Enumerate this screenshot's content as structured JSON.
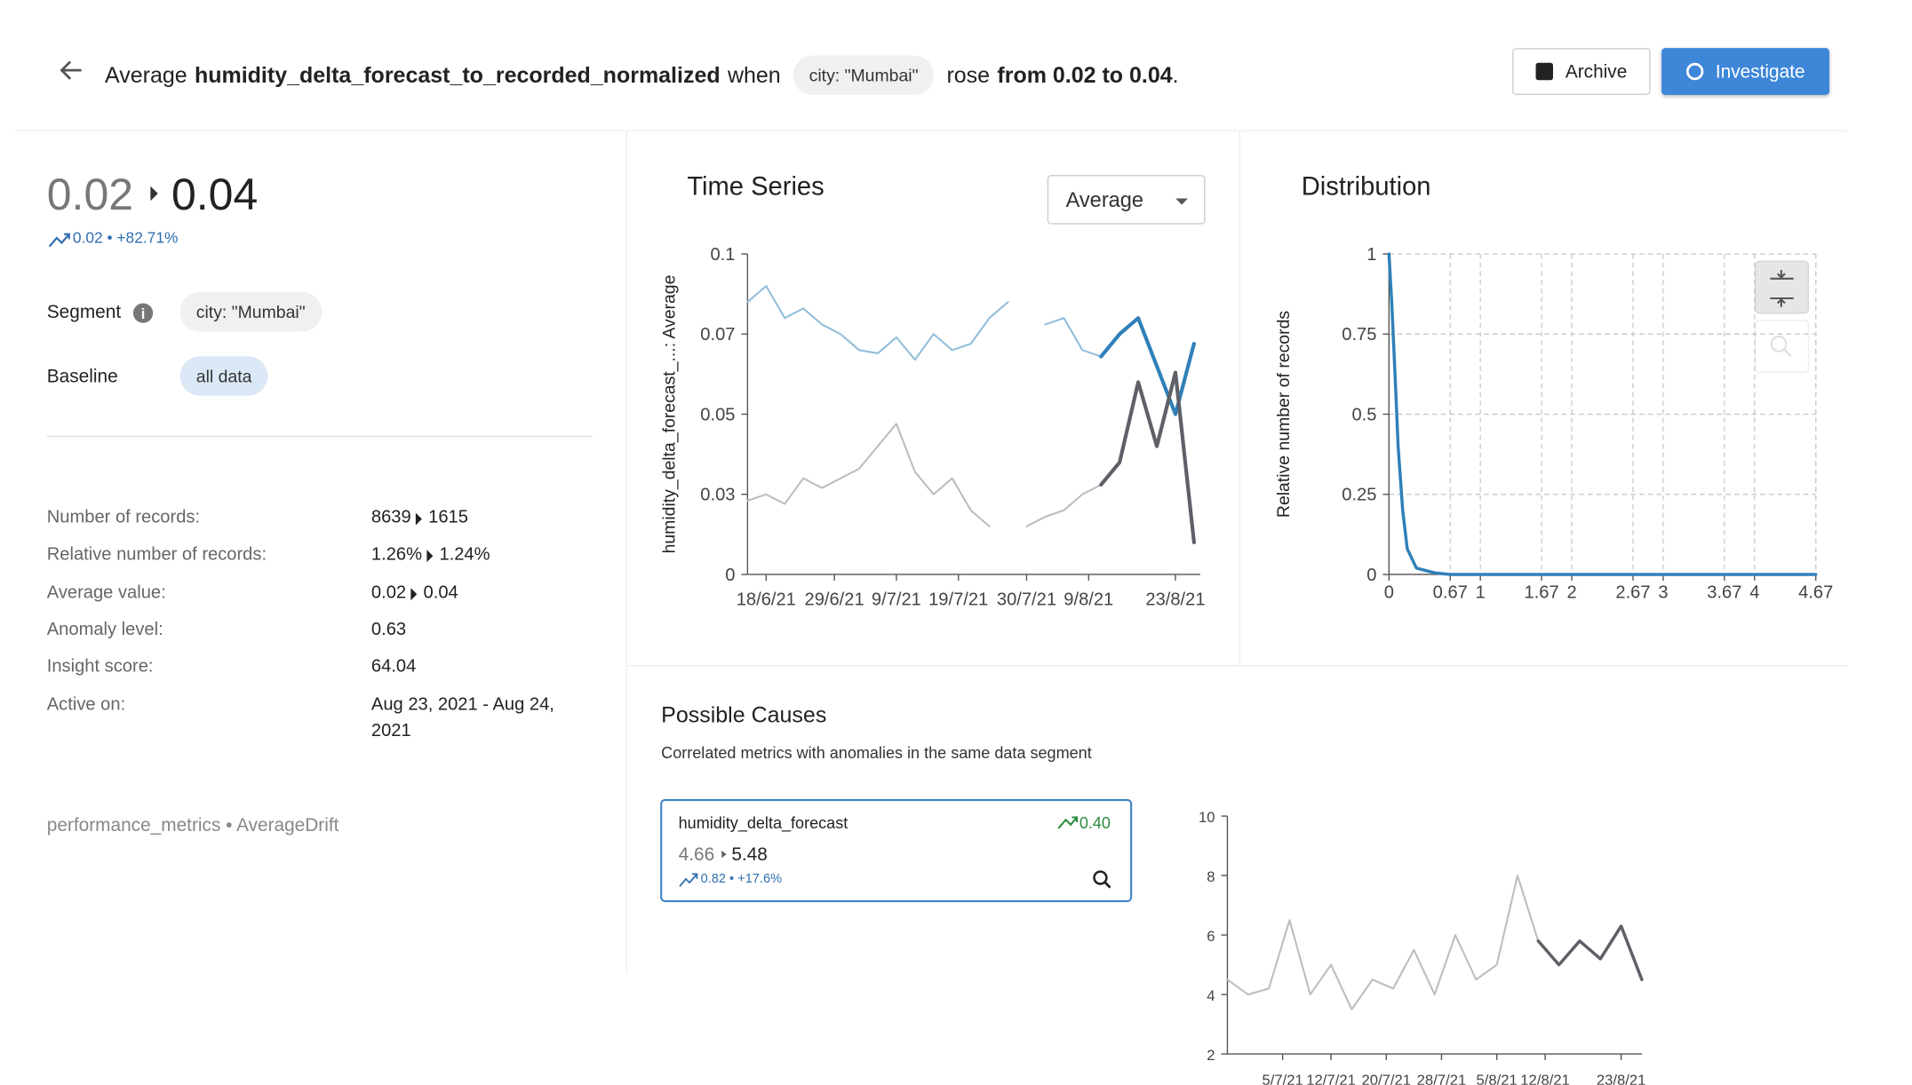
{
  "header": {
    "prefix": "Average",
    "metric": "humidity_delta_forecast_to_recorded_normalized",
    "when": "when",
    "segment_chip": "city: \"Mumbai\"",
    "verb": "rose",
    "change": "from 0.02 to 0.04",
    "end": "."
  },
  "buttons": {
    "archive": "Archive",
    "investigate": "Investigate"
  },
  "summary": {
    "from": "0.02",
    "to": "0.04",
    "delta": "0.02 • +82.71%"
  },
  "segment": {
    "label": "Segment",
    "value": "city: \"Mumbai\""
  },
  "baseline": {
    "label": "Baseline",
    "value": "all data"
  },
  "stats": [
    {
      "label": "Number of records:",
      "from": "8639",
      "to": "1615"
    },
    {
      "label": "Relative number of records:",
      "from": "1.26%",
      "to": "1.24%"
    },
    {
      "label": "Average value:",
      "from": "0.02",
      "to": "0.04"
    },
    {
      "label": "Anomaly level:",
      "value": "0.63"
    },
    {
      "label": "Insight score:",
      "value": "64.04"
    },
    {
      "label": "Active on:",
      "value": "Aug 23, 2021 - Aug 24, 2021"
    }
  ],
  "footer": "performance_metrics • AverageDrift",
  "causes": {
    "title": "Possible Causes",
    "subtitle": "Correlated metrics with anomalies in the same data segment",
    "card": {
      "metric": "humidity_delta_forecast",
      "score": "0.40",
      "from": "4.66",
      "to": "5.48",
      "delta": "0.82 • +17.6%"
    }
  },
  "chart_data": [
    {
      "type": "line",
      "title": "Time Series",
      "control": "Average",
      "ylabel": "humidity_delta_forecast_...: Average",
      "x": [
        "2021-06-15",
        "2021-06-18",
        "2021-06-21",
        "2021-06-24",
        "2021-06-27",
        "2021-06-30",
        "2021-07-03",
        "2021-07-06",
        "2021-07-09",
        "2021-07-12",
        "2021-07-15",
        "2021-07-18",
        "2021-07-21",
        "2021-07-24",
        "2021-07-27",
        "2021-07-30",
        "2021-08-02",
        "2021-08-05",
        "2021-08-08",
        "2021-08-11",
        "2021-08-14",
        "2021-08-17",
        "2021-08-20",
        "2021-08-23",
        "2021-08-26"
      ],
      "xlim": [
        "2021-06-15",
        "2021-08-27"
      ],
      "xticks": [
        {
          "value": "2021-06-18",
          "label": "18/6/21"
        },
        {
          "value": "2021-06-29",
          "label": "29/6/21"
        },
        {
          "value": "2021-07-09",
          "label": "9/7/21"
        },
        {
          "value": "2021-07-19",
          "label": "19/7/21"
        },
        {
          "value": "2021-07-30",
          "label": "30/7/21"
        },
        {
          "value": "2021-08-09",
          "label": "9/8/21"
        },
        {
          "value": "2021-08-23",
          "label": "23/8/21"
        }
      ],
      "ylim": [
        0,
        0.1
      ],
      "yticks": [
        0,
        {
          "value": 0.025,
          "label": "0.03"
        },
        0.05,
        {
          "value": 0.075,
          "label": "0.07"
        },
        0.1
      ],
      "grid": false,
      "series": [
        {
          "color": "#92bedb",
          "width": 1.5,
          "values": [
            0.085,
            0.09,
            0.08,
            0.083,
            0.078,
            0.075,
            0.07,
            0.069,
            0.074,
            0.067,
            0.075,
            0.07,
            0.072,
            0.08,
            0.085,
            null,
            0.078,
            0.08,
            0.07,
            0.068,
            null,
            null,
            null,
            null,
            null
          ]
        },
        {
          "color": "#bdbdbd",
          "width": 1.5,
          "values": [
            0.023,
            0.025,
            0.022,
            0.03,
            0.027,
            0.03,
            0.033,
            0.04,
            0.047,
            0.032,
            0.025,
            0.03,
            0.02,
            0.015,
            null,
            0.015,
            0.018,
            0.02,
            0.025,
            0.028,
            null,
            null,
            null,
            null,
            null
          ]
        },
        {
          "color": "#2f80b9",
          "width": 3,
          "values": [
            null,
            null,
            null,
            null,
            null,
            null,
            null,
            null,
            null,
            null,
            null,
            null,
            null,
            null,
            null,
            null,
            null,
            null,
            null,
            0.068,
            0.075,
            0.08,
            0.065,
            0.05,
            0.072
          ]
        },
        {
          "color": "#5e5f67",
          "width": 3,
          "values": [
            null,
            null,
            null,
            null,
            null,
            null,
            null,
            null,
            null,
            null,
            null,
            null,
            null,
            null,
            null,
            null,
            null,
            null,
            null,
            0.028,
            0.035,
            0.06,
            0.04,
            0.063,
            0.01
          ]
        }
      ]
    },
    {
      "type": "line",
      "title": "Distribution",
      "ylabel": "Relative number of records",
      "x": [
        0,
        0.03,
        0.07,
        0.1,
        0.15,
        0.2,
        0.3,
        0.5,
        0.67,
        1,
        2,
        3,
        4,
        4.67
      ],
      "xlim": [
        0,
        4.67
      ],
      "xticks": [
        0,
        0.67,
        1,
        1.67,
        2,
        2.67,
        3,
        3.67,
        4,
        4.67
      ],
      "ylim": [
        0,
        1
      ],
      "yticks": [
        0,
        0.25,
        0.5,
        0.75,
        1
      ],
      "grid": true,
      "series": [
        {
          "color": "#2f80b9",
          "width": 2.5,
          "values": [
            1,
            0.85,
            0.6,
            0.4,
            0.2,
            0.08,
            0.02,
            0.005,
            0,
            0,
            0,
            0,
            0,
            0
          ]
        }
      ]
    },
    {
      "type": "line",
      "x": [
        "2021-06-27",
        "2021-06-30",
        "2021-07-03",
        "2021-07-06",
        "2021-07-09",
        "2021-07-12",
        "2021-07-15",
        "2021-07-18",
        "2021-07-21",
        "2021-07-24",
        "2021-07-27",
        "2021-07-30",
        "2021-08-02",
        "2021-08-05",
        "2021-08-08",
        "2021-08-11",
        "2021-08-14",
        "2021-08-17",
        "2021-08-20",
        "2021-08-23",
        "2021-08-26"
      ],
      "xlim": [
        "2021-06-27",
        "2021-08-26"
      ],
      "xticks": [
        {
          "value": "2021-07-05",
          "label": "5/7/21"
        },
        {
          "value": "2021-07-12",
          "label": "12/7/21"
        },
        {
          "value": "2021-07-20",
          "label": "20/7/21"
        },
        {
          "value": "2021-07-28",
          "label": "28/7/21"
        },
        {
          "value": "2021-08-05",
          "label": "5/8/21"
        },
        {
          "value": "2021-08-12",
          "label": "12/8/21"
        },
        {
          "value": "2021-08-23",
          "label": "23/8/21"
        }
      ],
      "ylim": [
        2,
        10
      ],
      "yticks": [
        2,
        4,
        6,
        8,
        10
      ],
      "grid": false,
      "series": [
        {
          "color": "#bdbdbd",
          "width": 1.5,
          "values": [
            4.5,
            4,
            4.2,
            6.5,
            4,
            5,
            3.5,
            4.5,
            4.2,
            5.5,
            4,
            6,
            4.5,
            5,
            8,
            5.8,
            null,
            null,
            null,
            null,
            null
          ]
        },
        {
          "color": "#5e5f67",
          "width": 2.5,
          "values": [
            null,
            null,
            null,
            null,
            null,
            null,
            null,
            null,
            null,
            null,
            null,
            null,
            null,
            null,
            null,
            5.8,
            5,
            5.8,
            5.2,
            6.3,
            4.5
          ]
        }
      ]
    }
  ]
}
